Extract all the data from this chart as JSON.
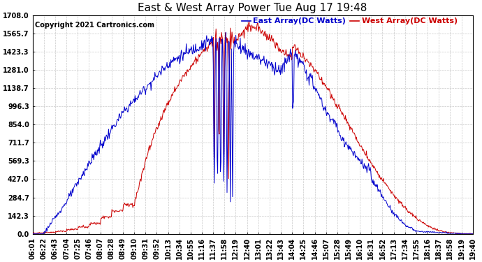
{
  "title": "East & West Array Power Tue Aug 17 19:48",
  "copyright": "Copyright 2021 Cartronics.com",
  "legend_east": "East Array(DC Watts)",
  "legend_west": "West Array(DC Watts)",
  "east_color": "#0000cc",
  "west_color": "#cc0000",
  "background_color": "#ffffff",
  "grid_color": "#bbbbbb",
  "ylim": [
    0.0,
    1708.0
  ],
  "yticks": [
    0.0,
    142.3,
    284.7,
    427.0,
    569.3,
    711.7,
    854.0,
    996.3,
    1138.7,
    1281.0,
    1423.3,
    1565.7,
    1708.0
  ],
  "xtick_labels": [
    "06:01",
    "06:22",
    "06:43",
    "07:04",
    "07:25",
    "07:46",
    "08:07",
    "08:28",
    "08:49",
    "09:10",
    "09:31",
    "09:52",
    "10:13",
    "10:34",
    "10:55",
    "11:16",
    "11:37",
    "11:58",
    "12:19",
    "12:40",
    "13:01",
    "13:22",
    "13:43",
    "14:04",
    "14:25",
    "14:46",
    "15:07",
    "15:28",
    "15:49",
    "16:10",
    "16:31",
    "16:52",
    "17:13",
    "17:34",
    "17:55",
    "18:16",
    "18:37",
    "18:58",
    "19:19",
    "19:40"
  ],
  "title_fontsize": 11,
  "copyright_fontsize": 7,
  "legend_fontsize": 8,
  "axis_tick_fontsize": 7
}
